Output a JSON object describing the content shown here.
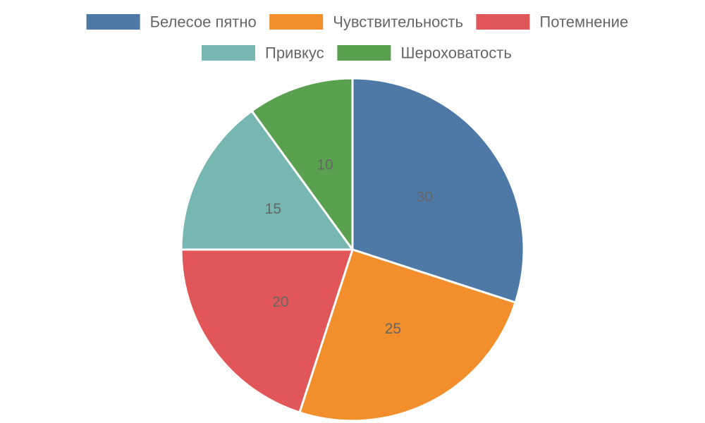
{
  "chart_data": {
    "type": "pie",
    "categories": [
      "Белесое пятно",
      "Чувствительность",
      "Потемнение",
      "Привкус",
      "Шероховатость"
    ],
    "values": [
      30,
      25,
      20,
      15,
      10
    ],
    "colors": [
      "#4e79a7",
      "#f28e2b",
      "#e15759",
      "#76b7b2",
      "#59a14f"
    ],
    "legend_position": "top",
    "show_values": true
  }
}
